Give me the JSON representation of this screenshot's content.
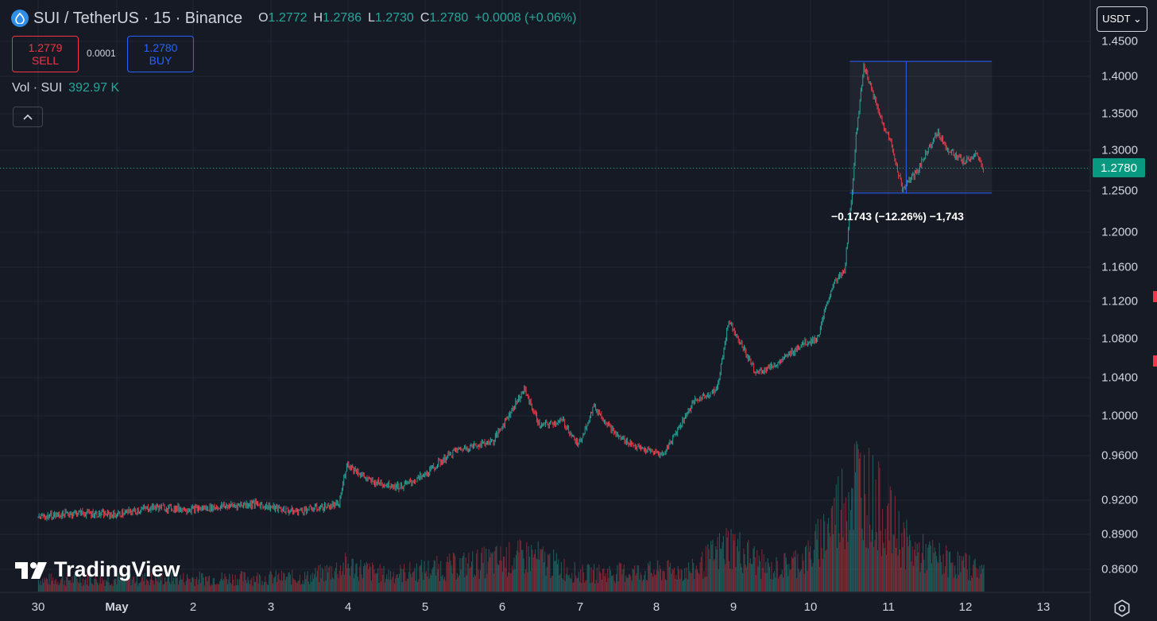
{
  "header": {
    "symbol_title": "SUI / TetherUS · 15 · Binance",
    "symbol_icon": "sui-drop-icon",
    "open_label": "O",
    "open_value": "1.2772",
    "high_label": "H",
    "high_value": "1.2786",
    "low_label": "L",
    "low_value": "1.2730",
    "close_label": "C",
    "close_value": "1.2780",
    "change": "+0.0008 (+0.06%)"
  },
  "trade": {
    "sell_price": "1.2779",
    "sell_label": "SELL",
    "spread": "0.0001",
    "buy_price": "1.2780",
    "buy_label": "BUY"
  },
  "volume": {
    "label": "Vol · SUI",
    "value": "392.97 K"
  },
  "currency_button": "USDT ⌄",
  "current_price_tag": "1.2780",
  "measure": {
    "label": "−0.1743 (−12.26%) −1,743"
  },
  "brand": {
    "name": "TradingView"
  },
  "colors": {
    "up": "#26a69a",
    "down": "#f23645",
    "background": "#161a25",
    "grid": "#232632",
    "accent": "#2962ff"
  },
  "chart_data": {
    "type": "candlestick",
    "y_tick_labels": [
      "1.4500",
      "1.4000",
      "1.3500",
      "1.3000",
      "1.2500",
      "1.2000",
      "1.1600",
      "1.1200",
      "1.0800",
      "1.0400",
      "1.0000",
      "0.9600",
      "0.9200",
      "0.8900",
      "0.8600"
    ],
    "x_tick_labels": [
      "30",
      "May",
      "2",
      "3",
      "4",
      "5",
      "6",
      "7",
      "8",
      "9",
      "10",
      "11",
      "12",
      "13"
    ],
    "price_path": [
      {
        "x": 0,
        "y": 0.905
      },
      {
        "x": 0.5,
        "y": 0.909
      },
      {
        "x": 1,
        "y": 0.907
      },
      {
        "x": 1.5,
        "y": 0.914
      },
      {
        "x": 2,
        "y": 0.912
      },
      {
        "x": 2.8,
        "y": 0.917
      },
      {
        "x": 3.3,
        "y": 0.91
      },
      {
        "x": 3.9,
        "y": 0.916
      },
      {
        "x": 4.0,
        "y": 0.953
      },
      {
        "x": 4.3,
        "y": 0.937
      },
      {
        "x": 4.7,
        "y": 0.932
      },
      {
        "x": 5.0,
        "y": 0.942
      },
      {
        "x": 5.4,
        "y": 0.965
      },
      {
        "x": 5.9,
        "y": 0.975
      },
      {
        "x": 6.3,
        "y": 1.028
      },
      {
        "x": 6.5,
        "y": 0.99
      },
      {
        "x": 6.8,
        "y": 0.995
      },
      {
        "x": 7.0,
        "y": 0.97
      },
      {
        "x": 7.2,
        "y": 1.01
      },
      {
        "x": 7.5,
        "y": 0.98
      },
      {
        "x": 7.8,
        "y": 0.967
      },
      {
        "x": 8.1,
        "y": 0.961
      },
      {
        "x": 8.5,
        "y": 1.015
      },
      {
        "x": 8.8,
        "y": 1.028
      },
      {
        "x": 8.95,
        "y": 1.1
      },
      {
        "x": 9.3,
        "y": 1.045
      },
      {
        "x": 9.6,
        "y": 1.055
      },
      {
        "x": 9.9,
        "y": 1.075
      },
      {
        "x": 10.1,
        "y": 1.08
      },
      {
        "x": 10.3,
        "y": 1.14
      },
      {
        "x": 10.45,
        "y": 1.155
      },
      {
        "x": 10.55,
        "y": 1.25
      },
      {
        "x": 10.6,
        "y": 1.32
      },
      {
        "x": 10.7,
        "y": 1.415
      },
      {
        "x": 10.9,
        "y": 1.35
      },
      {
        "x": 11.05,
        "y": 1.31
      },
      {
        "x": 11.2,
        "y": 1.252
      },
      {
        "x": 11.4,
        "y": 1.275
      },
      {
        "x": 11.65,
        "y": 1.325
      },
      {
        "x": 11.8,
        "y": 1.3
      },
      {
        "x": 12.0,
        "y": 1.285
      },
      {
        "x": 12.15,
        "y": 1.295
      },
      {
        "x": 12.25,
        "y": 1.278
      }
    ],
    "volume_profile": [
      {
        "x": 0,
        "v": 0.1
      },
      {
        "x": 3.5,
        "v": 0.12
      },
      {
        "x": 4.0,
        "v": 0.22
      },
      {
        "x": 4.5,
        "v": 0.14
      },
      {
        "x": 6.4,
        "v": 0.3
      },
      {
        "x": 7.0,
        "v": 0.15
      },
      {
        "x": 8.5,
        "v": 0.18
      },
      {
        "x": 8.95,
        "v": 0.4
      },
      {
        "x": 9.5,
        "v": 0.18
      },
      {
        "x": 10.0,
        "v": 0.3
      },
      {
        "x": 10.6,
        "v": 0.95
      },
      {
        "x": 10.9,
        "v": 0.7
      },
      {
        "x": 11.3,
        "v": 0.35
      },
      {
        "x": 11.8,
        "v": 0.25
      },
      {
        "x": 12.25,
        "v": 0.18
      }
    ],
    "current_price": 1.278,
    "measure_range": {
      "x_start": 10.52,
      "x_end": 12.36,
      "y_high": 1.4215,
      "y_low": 1.2472
    }
  }
}
